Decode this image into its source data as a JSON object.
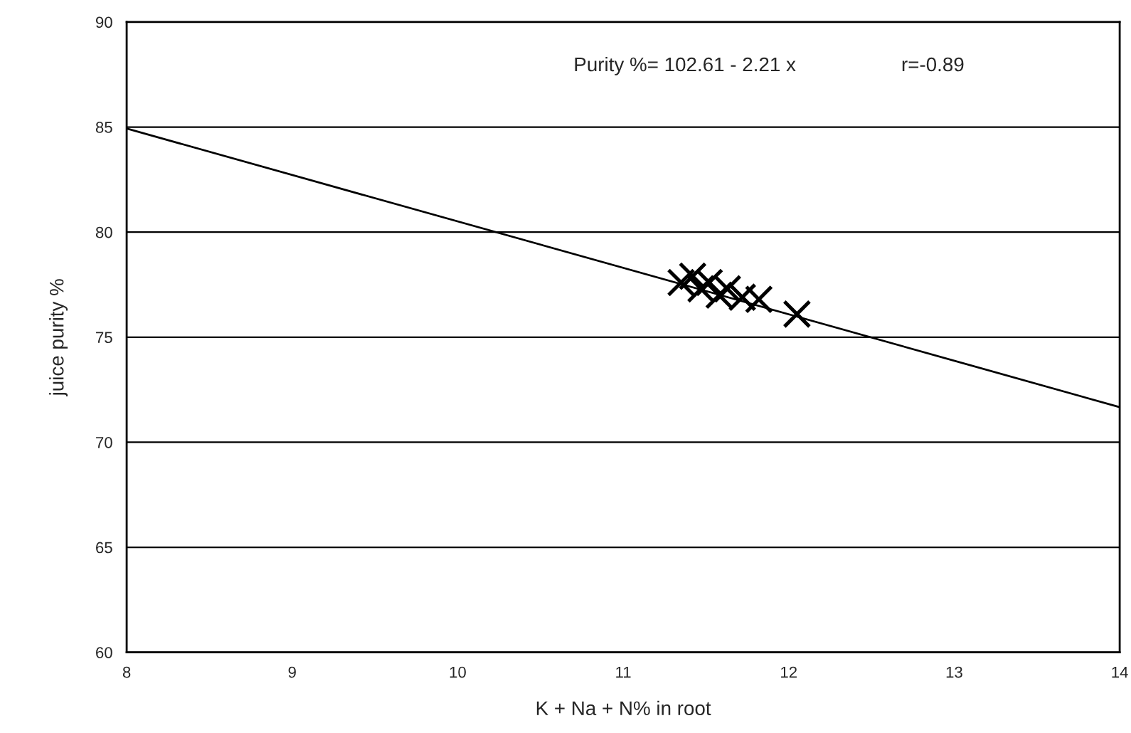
{
  "chart_data": {
    "type": "scatter",
    "xlabel": "K + Na + N% in root",
    "ylabel": "juice purity %",
    "xlim": [
      8,
      14
    ],
    "ylim": [
      60,
      90
    ],
    "xticks": [
      8,
      9,
      10,
      11,
      12,
      13,
      14
    ],
    "yticks": [
      60,
      65,
      70,
      75,
      80,
      85,
      90
    ],
    "grid": "y",
    "annotations": [
      "Purity %= 102.61 - 2.21 x",
      "r=-0.89"
    ],
    "series": [
      {
        "marker": "cross",
        "color": "#000000",
        "x": [
          11.35,
          11.42,
          11.47,
          11.52,
          11.58,
          11.63,
          11.72,
          11.82,
          12.05
        ],
        "values": [
          77.6,
          77.9,
          77.3,
          77.6,
          77.0,
          77.3,
          76.9,
          76.8,
          76.1
        ]
      },
      {
        "type": "line",
        "marker": "none",
        "line_style": "solid",
        "color": "#000000",
        "x": [
          8,
          14
        ],
        "values": [
          84.93,
          71.67
        ]
      }
    ]
  }
}
